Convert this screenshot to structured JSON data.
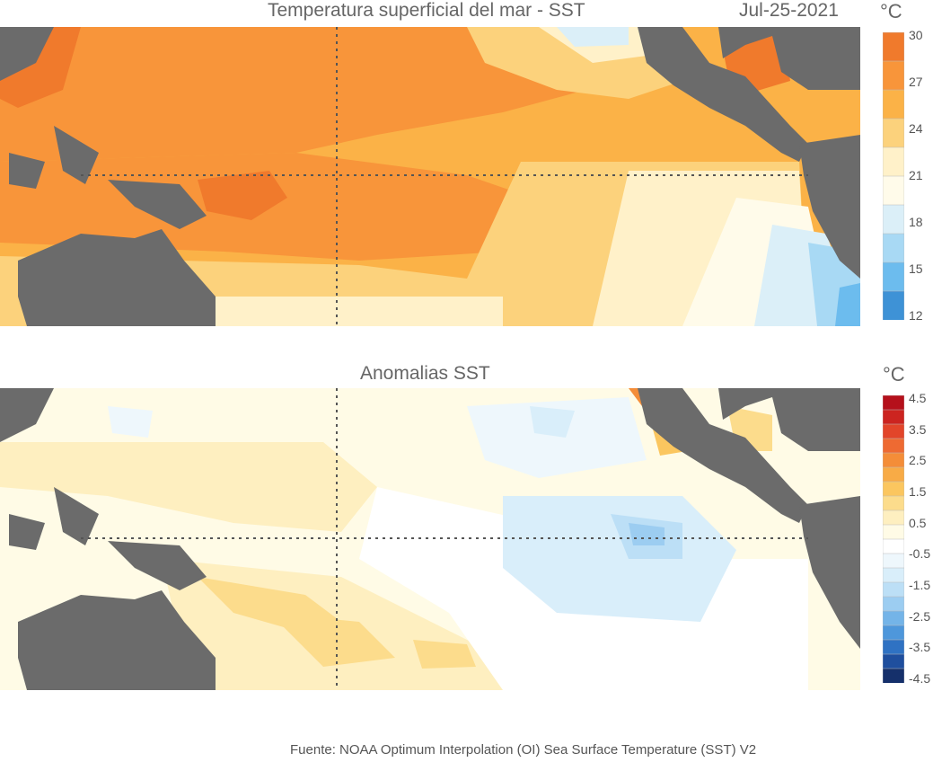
{
  "top_panel": {
    "title": "Temperatura superficial del mar - SST",
    "date": "Jul-25-2021",
    "unit": "°C",
    "colorbar": {
      "ticks": [
        "30",
        "27",
        "24",
        "21",
        "18",
        "15",
        "12"
      ],
      "colors": [
        "#f07a2c",
        "#f8953a",
        "#fbb247",
        "#fcd27c",
        "#fff1c9",
        "#fffbea",
        "#dbeff8",
        "#a8d9f4",
        "#6cbcee",
        "#3e92d6"
      ]
    }
  },
  "bottom_panel": {
    "title": "Anomalias SST",
    "unit": "°C",
    "colorbar": {
      "ticks": [
        "4.5",
        "3.5",
        "2.5",
        "1.5",
        "0.5",
        "-0.5",
        "-1.5",
        "-2.5",
        "-3.5",
        "-4.5"
      ],
      "colors": [
        "#b5101b",
        "#cc2420",
        "#e2452a",
        "#ee6a32",
        "#f48d38",
        "#f8ab46",
        "#fbc65f",
        "#fcdc8c",
        "#feefc0",
        "#fffbe6",
        "#ffffff",
        "#eef7fc",
        "#d9eefa",
        "#bcdff6",
        "#9ccdf1",
        "#74b4e8",
        "#4e97db",
        "#2f72c3",
        "#1f4f9e",
        "#15306b"
      ]
    }
  },
  "source": "Fuente: NOAA Optimum Interpolation (OI) Sea Surface Temperature (SST) V2"
}
